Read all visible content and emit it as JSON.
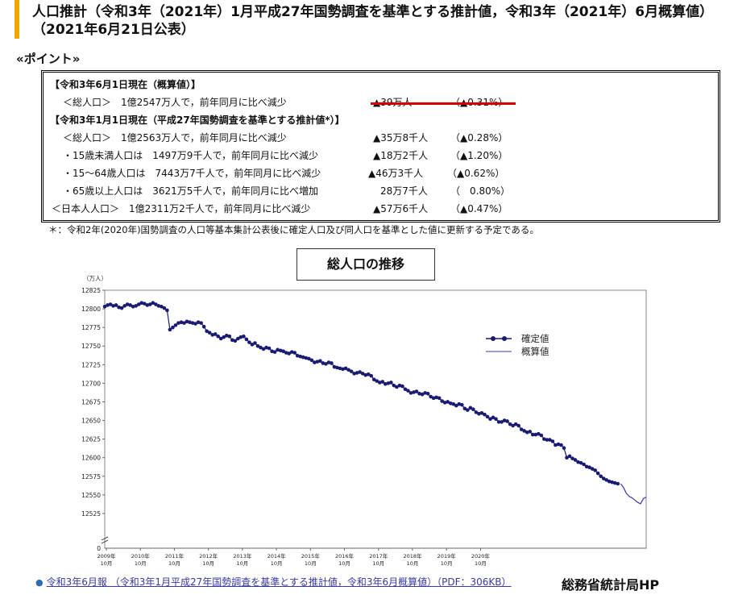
{
  "title": "人口推計（令和3年（2021年）1月平成27年国勢調査を基準とする推計値，令和3年（2021年）6月概算値）　（2021年6月21日公表）",
  "point_heading": "«ポイント»",
  "points": {
    "section1_header": "【令和3年6月1日現在（概算値）】",
    "section2_header": "【令和3年1月1日現在（平成27年国勢調査を基準とする推計値*）】",
    "rows": [
      {
        "label": "＜総人口＞　1億2547万人で，前年同月に比べ減少",
        "change": "▲39万人",
        "pct": "（▲0.31%）"
      },
      {
        "label": "＜総人口＞　1億2563万人で，前年同月に比べ減少",
        "change": "▲35万8千人",
        "pct": "（▲0.28%）"
      },
      {
        "label": "・15歳未満人口は　1497万9千人で，前年同月に比べ減少",
        "change": "▲18万2千人",
        "pct": "（▲1.20%）"
      },
      {
        "label": "・15～64歳人口は　7443万7千人で，前年同月に比べ減少",
        "change": "▲46万3千人",
        "pct": "（▲0.62%）"
      },
      {
        "label": "・65歳以上人口は　3621万5千人で，前年同月に比べ増加",
        "change": "28万7千人",
        "pct": "（　0.80%）"
      },
      {
        "label": "＜日本人人口＞　1億2311万2千人で，前年同月に比べ減少",
        "change": "▲57万6千人",
        "pct": "（▲0.47%）"
      }
    ]
  },
  "footnote": "＊：令和2年(2020年)国勢調査の人口等基本集計公表後に確定人口及び同人口を基準とした値に更新する予定である。",
  "chart_title": "総人口の推移",
  "chart_data": {
    "type": "line",
    "ylabel": "（万人）",
    "ylim": [
      12500,
      12825
    ],
    "yticks": [
      12825,
      12800,
      12775,
      12750,
      12725,
      12700,
      12675,
      12650,
      12625,
      12600,
      12575,
      12550,
      12525
    ],
    "y_zero_label": "0",
    "xticks": [
      {
        "year": "2009年",
        "month": "10月"
      },
      {
        "year": "2010年",
        "month": "10月"
      },
      {
        "year": "2011年",
        "month": "10月"
      },
      {
        "year": "2012年",
        "month": "10月"
      },
      {
        "year": "2013年",
        "month": "10月"
      },
      {
        "year": "2014年",
        "month": "10月"
      },
      {
        "year": "2015年",
        "month": "10月"
      },
      {
        "year": "2016年",
        "month": "10月"
      },
      {
        "year": "2017年",
        "month": "10月"
      },
      {
        "year": "2018年",
        "month": "10月"
      },
      {
        "year": "2019年",
        "month": "10月"
      },
      {
        "year": "2020年",
        "month": "10月"
      }
    ],
    "x_start": "2009-10",
    "series": [
      {
        "name": "確定値",
        "style": "line-markers",
        "color": "#1a1a70",
        "values": [
          12803,
          12805,
          12806,
          12804,
          12805,
          12802,
          12801,
          12804,
          12806,
          12805,
          12803,
          12804,
          12806,
          12808,
          12807,
          12805,
          12806,
          12808,
          12806,
          12804,
          12803,
          12801,
          12798,
          12772,
          12775,
          12778,
          12781,
          12782,
          12781,
          12783,
          12782,
          12781,
          12780,
          12782,
          12781,
          12776,
          12770,
          12768,
          12765,
          12766,
          12763,
          12760,
          12762,
          12764,
          12763,
          12758,
          12757,
          12760,
          12762,
          12763,
          12759,
          12755,
          12752,
          12754,
          12750,
          12748,
          12746,
          12748,
          12747,
          12743,
          12742,
          12745,
          12744,
          12743,
          12741,
          12740,
          12742,
          12741,
          12737,
          12736,
          12735,
          12734,
          12733,
          12731,
          12728,
          12729,
          12730,
          12727,
          12726,
          12728,
          12727,
          12722,
          12721,
          12720,
          12719,
          12720,
          12718,
          12716,
          12713,
          12714,
          12715,
          12713,
          12711,
          12712,
          12710,
          12705,
          12703,
          12701,
          12702,
          12699,
          12700,
          12701,
          12697,
          12695,
          12697,
          12696,
          12692,
          12690,
          12687,
          12688,
          12689,
          12686,
          12685,
          12687,
          12686,
          12682,
          12680,
          12681,
          12680,
          12676,
          12674,
          12675,
          12673,
          12672,
          12670,
          12672,
          12671,
          12666,
          12664,
          12667,
          12665,
          12661,
          12659,
          12660,
          12658,
          12655,
          12652,
          12654,
          12652,
          12648,
          12648,
          12650,
          12649,
          12645,
          12643,
          12645,
          12643,
          12638,
          12636,
          12634,
          12635,
          12631,
          12631,
          12632,
          12630,
          12625,
          12624,
          12624,
          12622,
          12617,
          12618,
          12617,
          12613,
          12600,
          12602,
          12599,
          12597,
          12594,
          12593,
          12591,
          12588,
          12587,
          12585,
          12583,
          12579,
          12575,
          12572,
          12570,
          12568,
          12567,
          12566,
          12565
        ]
      },
      {
        "name": "概算値",
        "style": "line",
        "color": "#3a3ab0",
        "start_index": 182,
        "values": [
          12565,
          12560,
          12552,
          12548,
          12546,
          12543,
          12540,
          12538,
          12545,
          12547
        ]
      }
    ],
    "legend": "right"
  },
  "bottom_link": "令和3年6月報 （令和3年1月平成27年国勢調査を基準とする推計値，令和3年6月概算値）（PDF：306KB）",
  "source": "総務省統計局HP"
}
